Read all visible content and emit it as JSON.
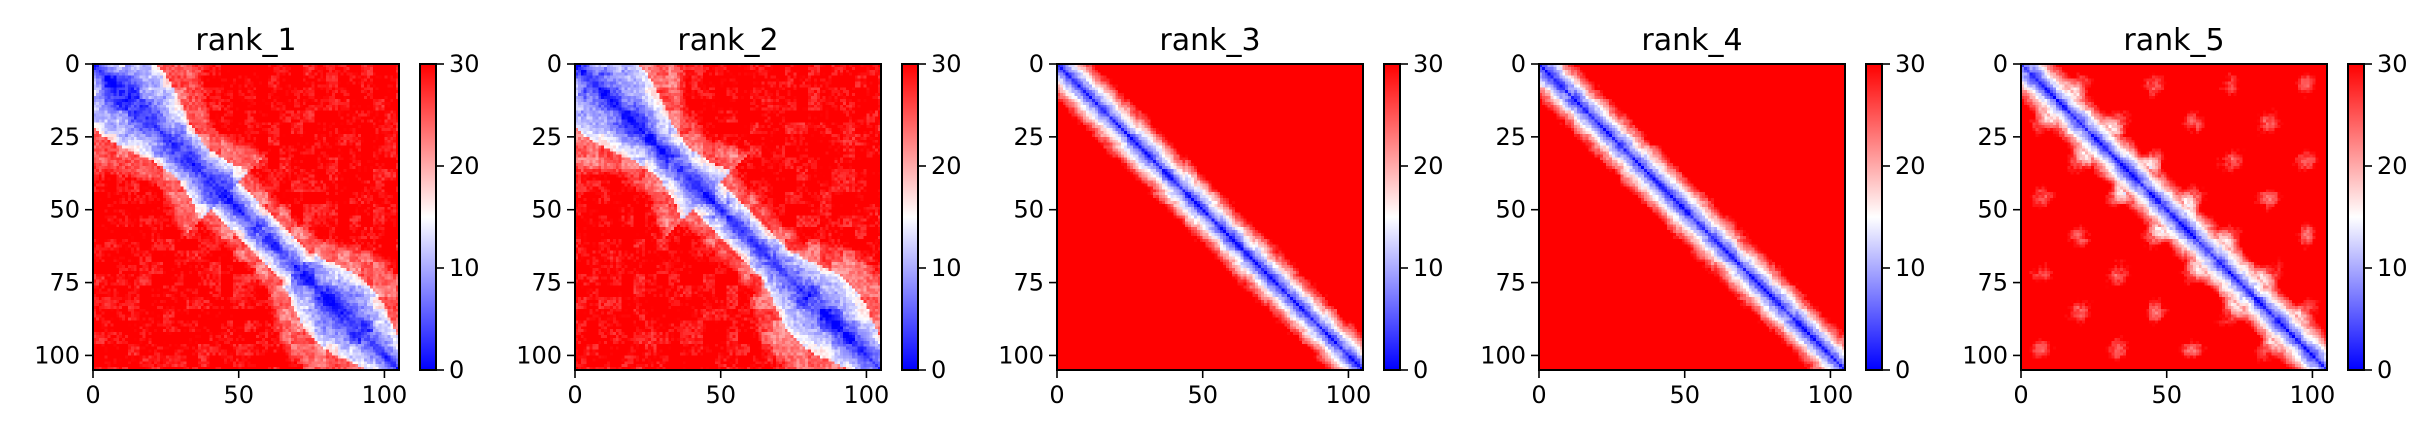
{
  "chart_data": [
    {
      "type": "heatmap",
      "title": "rank_1",
      "pattern": "broad",
      "size": 105,
      "xticks": [
        0,
        50,
        100
      ],
      "yticks": [
        0,
        25,
        50,
        75,
        100
      ],
      "colorbar": {
        "min": 0,
        "max": 30,
        "ticks": [
          0,
          10,
          20,
          30
        ]
      }
    },
    {
      "type": "heatmap",
      "title": "rank_2",
      "pattern": "broad",
      "size": 105,
      "xticks": [
        0,
        50,
        100
      ],
      "yticks": [
        0,
        25,
        50,
        75,
        100
      ],
      "colorbar": {
        "min": 0,
        "max": 30,
        "ticks": [
          0,
          10,
          20,
          30
        ]
      }
    },
    {
      "type": "heatmap",
      "title": "rank_3",
      "pattern": "helix",
      "size": 105,
      "xticks": [
        0,
        50,
        100
      ],
      "yticks": [
        0,
        25,
        50,
        75,
        100
      ],
      "colorbar": {
        "min": 0,
        "max": 30,
        "ticks": [
          0,
          10,
          20,
          30
        ]
      }
    },
    {
      "type": "heatmap",
      "title": "rank_4",
      "pattern": "helix",
      "size": 105,
      "xticks": [
        0,
        50,
        100
      ],
      "yticks": [
        0,
        25,
        50,
        75,
        100
      ],
      "colorbar": {
        "min": 0,
        "max": 30,
        "ticks": [
          0,
          10,
          20,
          30
        ]
      }
    },
    {
      "type": "heatmap",
      "title": "rank_5",
      "pattern": "helix-bands",
      "size": 105,
      "xticks": [
        0,
        50,
        100
      ],
      "yticks": [
        0,
        25,
        50,
        75,
        100
      ],
      "colorbar": {
        "min": 0,
        "max": 30,
        "ticks": [
          0,
          10,
          20,
          30
        ]
      }
    }
  ],
  "colors": {
    "low": "#0000ff",
    "mid": "#ffffff",
    "high": "#ff0000"
  }
}
